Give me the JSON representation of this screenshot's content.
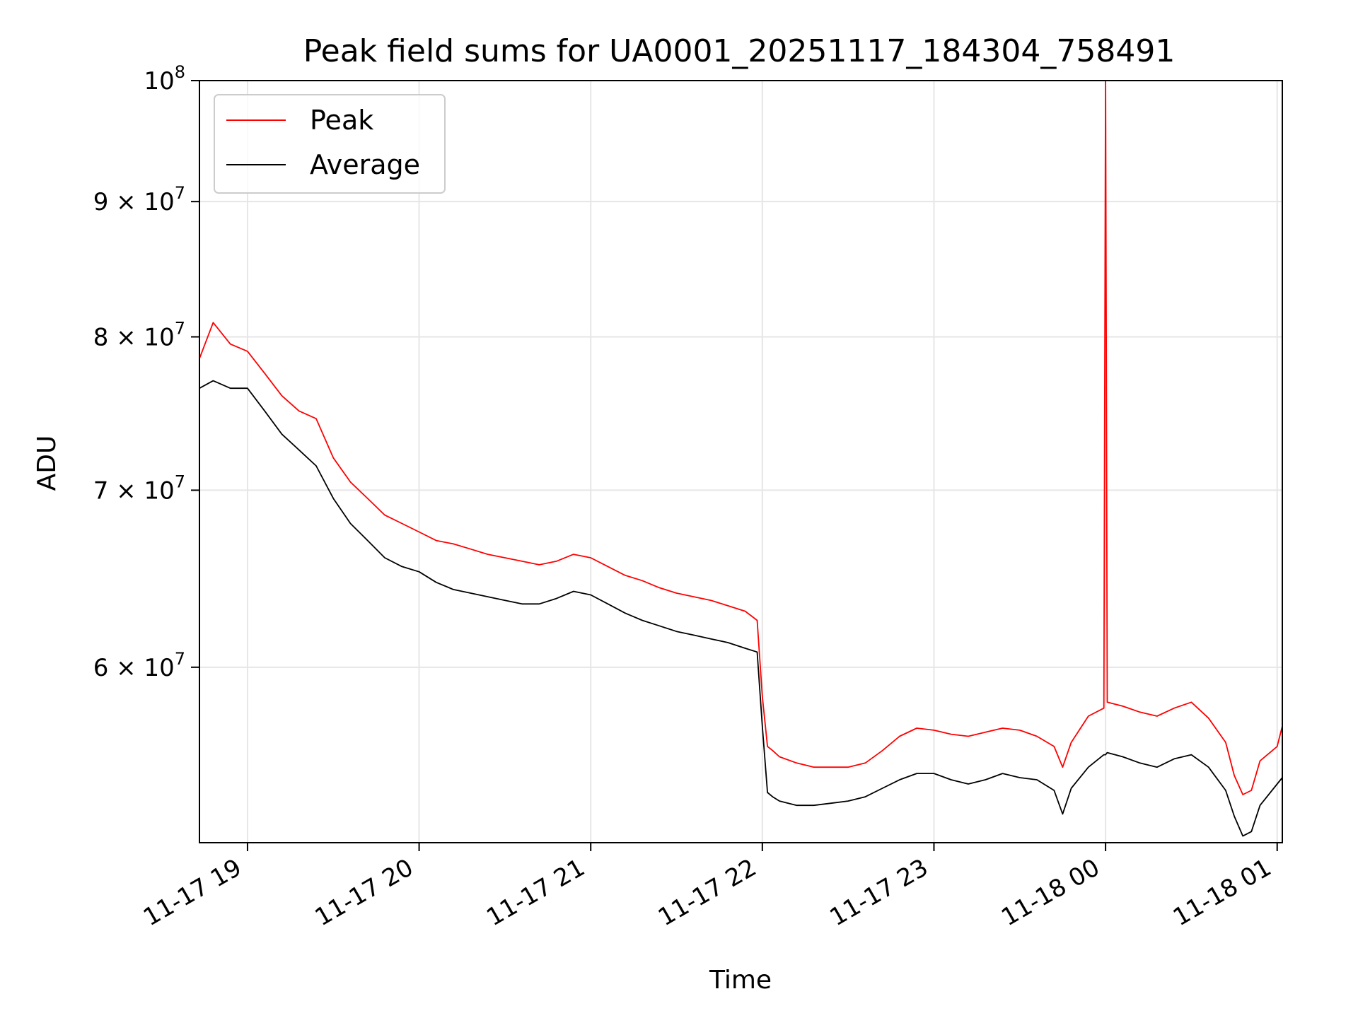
{
  "chart_data": {
    "type": "line",
    "title": "Peak field sums for UA0001_20251117_184304_758491",
    "xlabel": "Time",
    "ylabel": "ADU",
    "yscale": "log",
    "ylim": [
      51500000,
      100000000
    ],
    "xlim_hours": [
      18.72,
      25.03
    ],
    "grid": true,
    "legend_position": "upper left",
    "x_ticks": [
      {
        "hour": 19,
        "label": "11-17 19"
      },
      {
        "hour": 20,
        "label": "11-17 20"
      },
      {
        "hour": 21,
        "label": "11-17 21"
      },
      {
        "hour": 22,
        "label": "11-17 22"
      },
      {
        "hour": 23,
        "label": "11-17 23"
      },
      {
        "hour": 24,
        "label": "11-18 00"
      },
      {
        "hour": 25,
        "label": "11-18 01"
      }
    ],
    "y_ticks": [
      {
        "value": 60000000,
        "mantissa": "6",
        "times": "×",
        "base": "10",
        "exp": "7"
      },
      {
        "value": 70000000,
        "mantissa": "7",
        "times": "×",
        "base": "10",
        "exp": "7"
      },
      {
        "value": 80000000,
        "mantissa": "8",
        "times": "×",
        "base": "10",
        "exp": "7"
      },
      {
        "value": 90000000,
        "mantissa": "9",
        "times": "×",
        "base": "10",
        "exp": "7"
      },
      {
        "value": 100000000,
        "mantissa": "",
        "times": "",
        "base": "10",
        "exp": "8"
      }
    ],
    "series": [
      {
        "name": "Peak",
        "color": "#ff0000",
        "hours": [
          18.72,
          18.8,
          18.9,
          19.0,
          19.1,
          19.2,
          19.3,
          19.4,
          19.5,
          19.6,
          19.7,
          19.8,
          19.9,
          20.0,
          20.1,
          20.2,
          20.3,
          20.4,
          20.5,
          20.6,
          20.7,
          20.8,
          20.9,
          21.0,
          21.1,
          21.2,
          21.3,
          21.4,
          21.5,
          21.6,
          21.7,
          21.8,
          21.9,
          21.97,
          22.0,
          22.03,
          22.06,
          22.1,
          22.2,
          22.3,
          22.4,
          22.5,
          22.6,
          22.7,
          22.8,
          22.9,
          23.0,
          23.1,
          23.2,
          23.3,
          23.4,
          23.5,
          23.6,
          23.7,
          23.75,
          23.8,
          23.9,
          23.99,
          24.0,
          24.01,
          24.1,
          24.2,
          24.3,
          24.4,
          24.5,
          24.6,
          24.7,
          24.75,
          24.8,
          24.85,
          24.9,
          25.0,
          25.03
        ],
        "values": [
          78500000,
          81000000,
          79500000,
          79000000,
          77500000,
          76000000,
          75000000,
          74500000,
          72000000,
          70500000,
          69500000,
          68500000,
          68000000,
          67500000,
          67000000,
          66800000,
          66500000,
          66200000,
          66000000,
          65800000,
          65600000,
          65800000,
          66200000,
          66000000,
          65500000,
          65000000,
          64700000,
          64300000,
          64000000,
          63800000,
          63600000,
          63300000,
          63000000,
          62500000,
          58500000,
          56000000,
          55800000,
          55500000,
          55200000,
          55000000,
          55000000,
          55000000,
          55200000,
          55800000,
          56500000,
          56900000,
          56800000,
          56600000,
          56500000,
          56700000,
          56900000,
          56800000,
          56500000,
          56000000,
          55000000,
          56200000,
          57500000,
          57900000,
          100000000,
          58200000,
          58000000,
          57700000,
          57500000,
          57900000,
          58200000,
          57400000,
          56200000,
          54600000,
          53700000,
          53900000,
          55300000,
          56000000,
          57000000
        ]
      },
      {
        "name": "Average",
        "color": "#000000",
        "hours": [
          18.72,
          18.8,
          18.9,
          19.0,
          19.1,
          19.2,
          19.3,
          19.4,
          19.5,
          19.6,
          19.7,
          19.8,
          19.9,
          20.0,
          20.1,
          20.2,
          20.3,
          20.4,
          20.5,
          20.6,
          20.7,
          20.8,
          20.9,
          21.0,
          21.1,
          21.2,
          21.3,
          21.4,
          21.5,
          21.6,
          21.7,
          21.8,
          21.9,
          21.97,
          22.0,
          22.03,
          22.06,
          22.1,
          22.2,
          22.3,
          22.4,
          22.5,
          22.6,
          22.7,
          22.8,
          22.9,
          23.0,
          23.1,
          23.2,
          23.3,
          23.4,
          23.5,
          23.6,
          23.7,
          23.75,
          23.8,
          23.9,
          23.99,
          24.0,
          24.01,
          24.1,
          24.2,
          24.3,
          24.4,
          24.5,
          24.6,
          24.7,
          24.75,
          24.8,
          24.85,
          24.9,
          25.0,
          25.03
        ],
        "values": [
          76500000,
          77000000,
          76500000,
          76500000,
          75000000,
          73500000,
          72500000,
          71500000,
          69500000,
          68000000,
          67000000,
          66000000,
          65500000,
          65200000,
          64600000,
          64200000,
          64000000,
          63800000,
          63600000,
          63400000,
          63400000,
          63700000,
          64100000,
          63900000,
          63400000,
          62900000,
          62500000,
          62200000,
          61900000,
          61700000,
          61500000,
          61300000,
          61000000,
          60800000,
          57000000,
          53800000,
          53600000,
          53400000,
          53200000,
          53200000,
          53300000,
          53400000,
          53600000,
          54000000,
          54400000,
          54700000,
          54700000,
          54400000,
          54200000,
          54400000,
          54700000,
          54500000,
          54400000,
          53900000,
          52800000,
          54000000,
          55000000,
          55600000,
          55600000,
          55700000,
          55500000,
          55200000,
          55000000,
          55400000,
          55600000,
          55000000,
          53900000,
          52700000,
          51800000,
          52000000,
          53200000,
          54200000,
          54500000
        ]
      }
    ]
  }
}
